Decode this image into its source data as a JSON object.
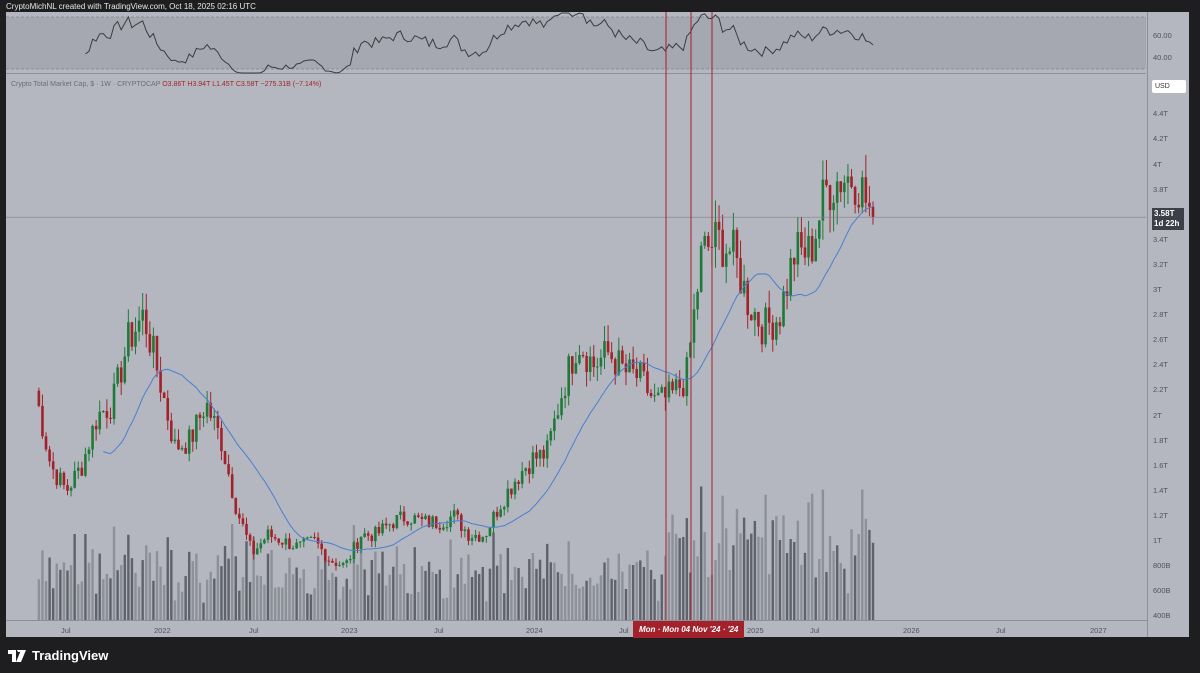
{
  "header": {
    "credit": "CryptoMichNL created with TradingView.com, Oct 18, 2025 02:16 UTC"
  },
  "legend": {
    "symbol": "Crypto Total Market Cap, $ · 1W · CRYPTOCAP",
    "open": "O3.86T",
    "high": "H3.94T",
    "low": "L1.45T",
    "close": "C3.58T",
    "change": "−275.31B (−7.14%)"
  },
  "rsi_axis": [
    "60.00",
    "40.00"
  ],
  "currency": "USD",
  "price_tag": {
    "price": "3.58T",
    "countdown": "1d 22h"
  },
  "crosshair_label": "Mon · Mon 04 Nov '24 · '24",
  "brand": "TradingView",
  "colors": {
    "up": "#1f7a3a",
    "down": "#a3212a",
    "ma": "#4a7fd0",
    "marker": "#a3212a"
  },
  "chart_data": {
    "type": "candlestick",
    "interval": "1W",
    "ylim_T": [
      0.4,
      4.5
    ],
    "yticks": [
      "4.4T",
      "4.2T",
      "4T",
      "3.8T",
      "3.4T",
      "3.2T",
      "3T",
      "2.8T",
      "2.6T",
      "2.4T",
      "2.2T",
      "2T",
      "1.8T",
      "1.6T",
      "1.4T",
      "1.2T",
      "1T",
      "800B",
      "600B",
      "400B"
    ],
    "xticks": [
      "Jul",
      "2022",
      "Jul",
      "2023",
      "Jul",
      "2024",
      "Jul",
      "2025",
      "Jul",
      "2026",
      "Jul",
      "2027"
    ],
    "monthly_close_T_from_Apr_2021": [
      2.2,
      1.6,
      1.4,
      1.6,
      2.0,
      2.1,
      2.6,
      2.8,
      2.3,
      1.75,
      1.8,
      2.1,
      1.8,
      1.25,
      0.9,
      1.05,
      1.0,
      0.95,
      1.0,
      0.85,
      0.8,
      1.05,
      1.05,
      1.15,
      1.2,
      1.15,
      1.15,
      1.2,
      1.05,
      1.05,
      1.3,
      1.5,
      1.65,
      1.7,
      2.2,
      2.6,
      2.4,
      2.5,
      2.35,
      2.3,
      2.1,
      2.15,
      2.3,
      3.3,
      3.4,
      3.3,
      2.9,
      2.7,
      2.8,
      3.3,
      3.3,
      3.8,
      3.9,
      3.9,
      3.58
    ],
    "last_price_T": 3.58,
    "moving_average": "blue line",
    "marker_lines": 3
  }
}
